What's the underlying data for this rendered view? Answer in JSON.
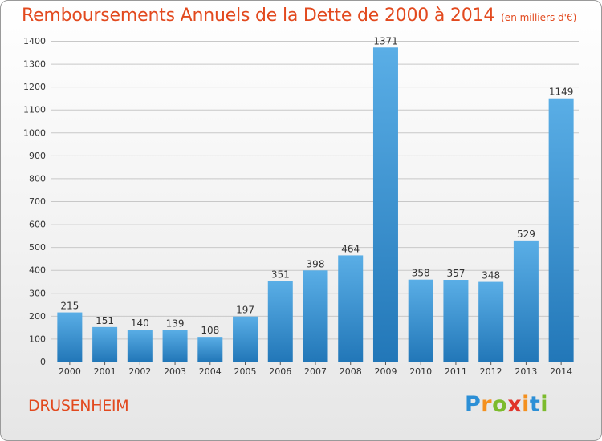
{
  "title": "Remboursements Annuels de la Dette de 2000 à 2014",
  "subtitle": "(en milliers d'€)",
  "commune": "DRUSENHEIM",
  "logo": {
    "letters": [
      "P",
      "r",
      "o",
      "x",
      "i",
      "t",
      "i"
    ],
    "colors": [
      "#2c8fd6",
      "#f4901e",
      "#7cbb2c",
      "#e0332a",
      "#f4901e",
      "#2c8fd6",
      "#7cbb2c"
    ]
  },
  "colors": {
    "bar_top": "#5aaee6",
    "bar_bottom": "#2277b8",
    "accent": "#e2491e",
    "grid": "#c8c8c8"
  },
  "chart_data": {
    "type": "bar",
    "categories": [
      "2000",
      "2001",
      "2002",
      "2003",
      "2004",
      "2005",
      "2006",
      "2007",
      "2008",
      "2009",
      "2010",
      "2011",
      "2012",
      "2013",
      "2014"
    ],
    "values": [
      215,
      151,
      140,
      139,
      108,
      197,
      351,
      398,
      464,
      1371,
      358,
      357,
      348,
      529,
      1149
    ],
    "ylim": [
      0,
      1400
    ],
    "yticks": [
      0,
      100,
      200,
      300,
      400,
      500,
      600,
      700,
      800,
      900,
      1000,
      1100,
      1200,
      1300,
      1400
    ],
    "grid": true,
    "data_labels": true
  }
}
